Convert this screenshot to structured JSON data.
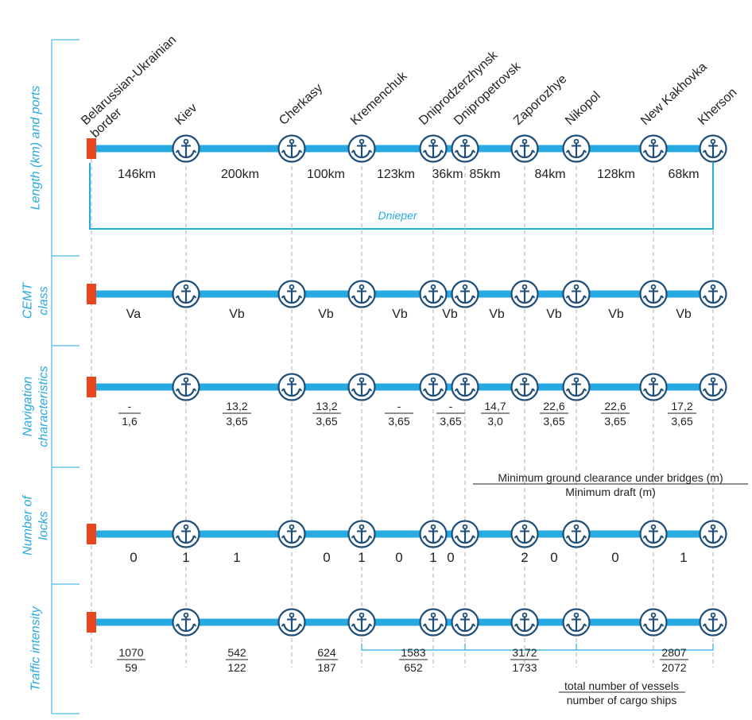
{
  "colors": {
    "river": "#27a9e1",
    "anchor": "#1f4e79",
    "border_marker": "#e8461e",
    "label": "#27a9e1",
    "text": "#222222",
    "dash": "#9a9a9a"
  },
  "icons": {
    "port": "anchor-icon",
    "start": "border-marker-icon"
  },
  "rows": [
    {
      "id": "length",
      "label_lines": [
        "Length (km) and ports"
      ]
    },
    {
      "id": "cemt",
      "label_lines": [
        "CEMT",
        "class"
      ]
    },
    {
      "id": "navigation",
      "label_lines": [
        "Navigation",
        "characteristics"
      ]
    },
    {
      "id": "locks",
      "label_lines": [
        "Number of",
        "locks"
      ]
    },
    {
      "id": "traffic",
      "label_lines": [
        "Traffic intensity"
      ]
    }
  ],
  "start_point": {
    "name_lines": [
      "Belarussian-Ukrainian",
      "border"
    ]
  },
  "ports": [
    "Kiev",
    "Cherkasy",
    "Kremenchuk",
    "Dniprodzerzhynsk",
    "Dnipropetrovsk",
    "Zaporozhye",
    "Nikopol",
    "New Kakhovka",
    "Kherson"
  ],
  "river_name": "Dnieper",
  "segment_lengths": [
    "146km",
    "200km",
    "100km",
    "123km",
    "36km",
    "85km",
    "84km",
    "128km",
    "68km"
  ],
  "cemt_classes": [
    "Va",
    "Vb",
    "Vb",
    "Vb",
    "Vb",
    "Vb",
    "Vb",
    "Vb",
    "Vb"
  ],
  "navigation": [
    {
      "clearance": "-",
      "draft": "1,6"
    },
    {
      "clearance": "13,2",
      "draft": "3,65"
    },
    {
      "clearance": "13,2",
      "draft": "3,65"
    },
    {
      "clearance": "-",
      "draft": "3,65"
    },
    {
      "clearance": "-",
      "draft": "3,65"
    },
    {
      "clearance": "14,7",
      "draft": "3,0"
    },
    {
      "clearance": "22,6",
      "draft": "3,65"
    },
    {
      "clearance": "22,6",
      "draft": "3,65"
    },
    {
      "clearance": "17,2",
      "draft": "3,65"
    }
  ],
  "navigation_legend": {
    "clearance": "Minimum ground clearance under bridges (m)",
    "draft": "Minimum draft (m)"
  },
  "locks": [
    "0",
    "1",
    "1",
    "0",
    "1",
    "0",
    "1",
    "0",
    "2",
    "0",
    "0",
    "1"
  ],
  "traffic": [
    {
      "total": "1070",
      "cargo": "59"
    },
    {
      "total": "542",
      "cargo": "122"
    },
    {
      "total": "624",
      "cargo": "187"
    },
    {
      "total": "1583",
      "cargo": "652"
    },
    {
      "total": "3172",
      "cargo": "1733"
    },
    {
      "total": "2807",
      "cargo": "2072"
    }
  ],
  "traffic_legend": {
    "total": "total number of vessels",
    "cargo": "number of cargo ships"
  }
}
